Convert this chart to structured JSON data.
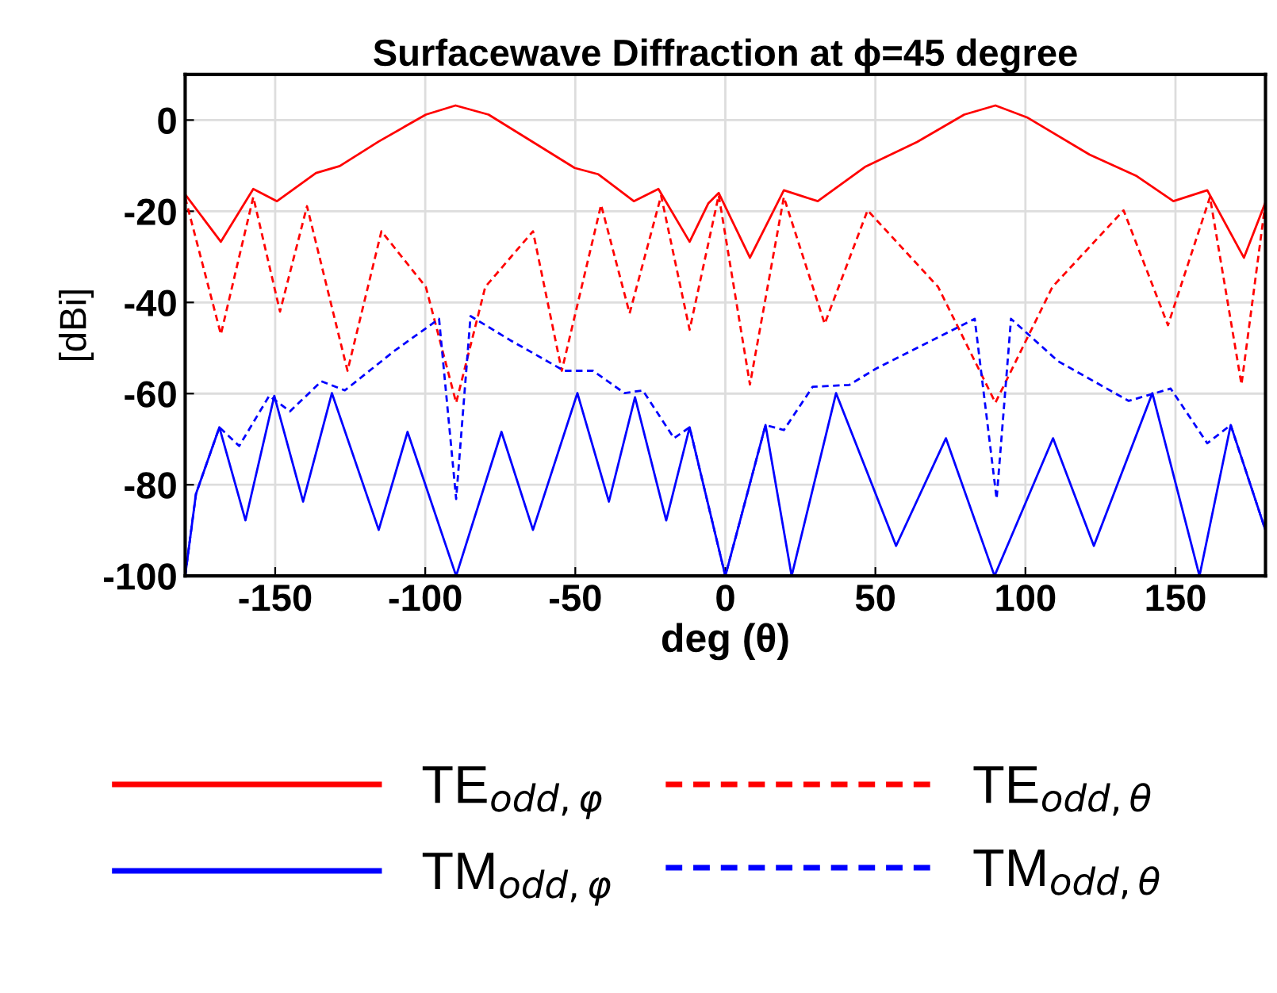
{
  "chart_data": {
    "type": "line",
    "title": "Surfacewave Diffraction at ϕ=45 degree",
    "xlabel": "deg (θ)",
    "ylabel": "[dBi]",
    "xlim": [
      -180,
      180
    ],
    "ylim": [
      -100,
      10
    ],
    "xticks": [
      -150,
      -100,
      -50,
      0,
      50,
      100,
      150
    ],
    "yticks": [
      -100,
      -80,
      -60,
      -40,
      -20,
      0
    ],
    "grid": true,
    "legend": "bottom",
    "series": [
      {
        "name": "TE$_{odd,φ}$",
        "color": "#ff0000",
        "line_style": "solid",
        "x": [
          -180,
          -168.1,
          -157.3,
          -149.4,
          -136.4,
          -128.5,
          -115.5,
          -99.8,
          -89.9,
          -78.9,
          -63.2,
          -50.2,
          -42.3,
          -30.5,
          -22.3,
          -11.9,
          -5.7,
          -2.2,
          8.2,
          19.5,
          30.8,
          46.5,
          63.9,
          79.6,
          90,
          100.5,
          121.4,
          137.1,
          149.3,
          160.6,
          172.8,
          180
        ],
        "values": [
          -16.3,
          -26.7,
          -15.1,
          -17.8,
          -11.6,
          -10.1,
          -4.7,
          1.2,
          3.2,
          1.2,
          -5.2,
          -10.5,
          -11.9,
          -17.8,
          -15.1,
          -26.7,
          -18.3,
          -16,
          -30.2,
          -15.4,
          -17.8,
          -10.3,
          -4.8,
          1.2,
          3.2,
          0.6,
          -7.6,
          -12.3,
          -17.8,
          -15.4,
          -30.2,
          -18
        ]
      },
      {
        "name": "TE$_{odd,θ}$",
        "color": "#ff0000",
        "line_style": "dashed",
        "x": [
          -180,
          -168.1,
          -157.3,
          -148.4,
          -139.4,
          -125.9,
          -114.6,
          -99.8,
          -89.7,
          -80,
          -64.1,
          -54.5,
          -41.4,
          -31.9,
          -21.4,
          -11.9,
          -2.2,
          8.2,
          19.5,
          33.1,
          47.4,
          70.9,
          90,
          109,
          132.7,
          147.5,
          161.5,
          172,
          180
        ],
        "values": [
          -17,
          -47,
          -16.9,
          -42,
          -18.9,
          -55,
          -24.4,
          -36.6,
          -62,
          -36.6,
          -24.4,
          -55,
          -18.6,
          -42.4,
          -16.6,
          -46,
          -16.5,
          -58,
          -16.9,
          -44.7,
          -19.8,
          -36.6,
          -62,
          -36.6,
          -19.8,
          -45,
          -16.9,
          -58,
          -18
        ]
      },
      {
        "name": "TM$_{odd,φ}$",
        "color": "#0000ff",
        "line_style": "solid",
        "x": [
          -180,
          -176.4,
          -168.6,
          -159.9,
          -150.3,
          -140.7,
          -131.1,
          -115.5,
          -105.9,
          -89.7,
          -74.6,
          -64.1,
          -49.3,
          -38.8,
          -30.1,
          -19.7,
          -11.9,
          0,
          13.4,
          22.1,
          36.9,
          56.9,
          73.5,
          89.7,
          109.2,
          122.8,
          142.3,
          158,
          168.4,
          180
        ],
        "values": [
          -100,
          -82,
          -67.4,
          -87.8,
          -60.5,
          -83.7,
          -59.9,
          -89.9,
          -68.4,
          -100,
          -68.4,
          -89.9,
          -59.9,
          -83.7,
          -60.8,
          -87.8,
          -67.4,
          -100,
          -66.9,
          -100,
          -59.9,
          -93.4,
          -69.8,
          -100,
          -69.8,
          -93.4,
          -59.9,
          -100,
          -66.9,
          -90
        ]
      },
      {
        "name": "TM$_{odd,θ}$",
        "color": "#0000ff",
        "line_style": "dashed",
        "x": [
          -180,
          -176.4,
          -168.6,
          -162,
          -152,
          -145.1,
          -134.6,
          -126.8,
          -110.2,
          -95.4,
          -89.7,
          -84.9,
          -71.9,
          -53.7,
          -44.1,
          -33.6,
          -27.5,
          -17.1,
          -11.9,
          0,
          13.4,
          19.5,
          29.1,
          41.3,
          50,
          83.1,
          90.4,
          95.2,
          110.9,
          134.4,
          148.4,
          160.6,
          168.4,
          180
        ],
        "values": [
          -100,
          -82,
          -67.4,
          -71.5,
          -60.5,
          -63.9,
          -57.3,
          -59.3,
          -50.6,
          -43.6,
          -83.1,
          -43,
          -48.2,
          -55,
          -55,
          -59.9,
          -59.3,
          -69.8,
          -67.4,
          -100,
          -66.9,
          -68,
          -58.5,
          -58.1,
          -54.6,
          -43.6,
          -83.1,
          -43.6,
          -52.9,
          -61.6,
          -58.9,
          -70.9,
          -66.9,
          -90
        ]
      }
    ]
  }
}
